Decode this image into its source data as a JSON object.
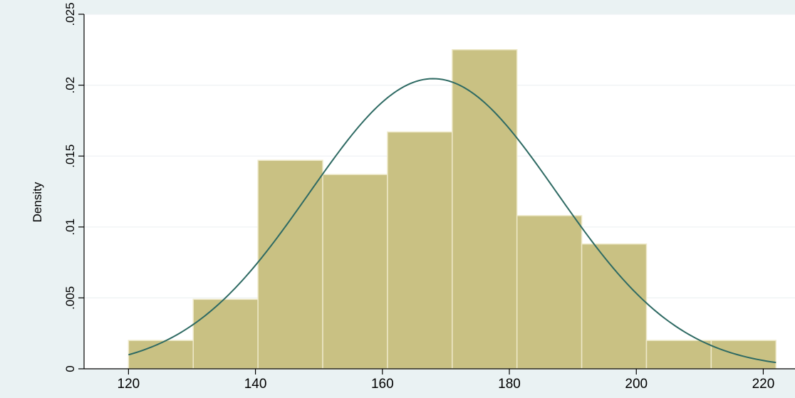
{
  "colors": {
    "outer_background": "#eaf2f3",
    "plot_background": "#ffffff",
    "bar_fill": "#c9c183",
    "bar_edge": "#eee9c9",
    "curve": "#2e6a63",
    "gridline": "#eef1f3",
    "axis": "#000000",
    "text": "#000000"
  },
  "chart_data": {
    "type": "bar",
    "title": "",
    "xlabel": "",
    "ylabel": "Density",
    "xlim": [
      113,
      225
    ],
    "ylim": [
      0,
      0.025
    ],
    "grid": true,
    "x_ticks": [
      {
        "value": 120,
        "label": "120"
      },
      {
        "value": 140,
        "label": "140"
      },
      {
        "value": 160,
        "label": "160"
      },
      {
        "value": 180,
        "label": "180"
      },
      {
        "value": 200,
        "label": "200"
      },
      {
        "value": 220,
        "label": "220"
      }
    ],
    "y_ticks": [
      {
        "value": 0,
        "label": "0"
      },
      {
        "value": 0.005,
        "label": ".005"
      },
      {
        "value": 0.01,
        "label": ".01"
      },
      {
        "value": 0.015,
        "label": ".015"
      },
      {
        "value": 0.02,
        "label": ".02"
      },
      {
        "value": 0.025,
        "label": ".025"
      }
    ],
    "bins": [
      {
        "x0": 120.0,
        "x1": 130.2,
        "density": 0.002
      },
      {
        "x0": 130.2,
        "x1": 140.4,
        "density": 0.0049
      },
      {
        "x0": 140.4,
        "x1": 150.6,
        "density": 0.0147
      },
      {
        "x0": 150.6,
        "x1": 160.8,
        "density": 0.0137
      },
      {
        "x0": 160.8,
        "x1": 171.0,
        "density": 0.0167
      },
      {
        "x0": 171.0,
        "x1": 181.2,
        "density": 0.0225
      },
      {
        "x0": 181.2,
        "x1": 191.4,
        "density": 0.0108
      },
      {
        "x0": 191.4,
        "x1": 201.6,
        "density": 0.0088
      },
      {
        "x0": 201.6,
        "x1": 211.8,
        "density": 0.002
      },
      {
        "x0": 211.8,
        "x1": 222.0,
        "density": 0.002
      }
    ],
    "normal_curve": {
      "mean": 168.0,
      "sd": 19.5,
      "x_range": [
        120,
        222
      ]
    }
  }
}
